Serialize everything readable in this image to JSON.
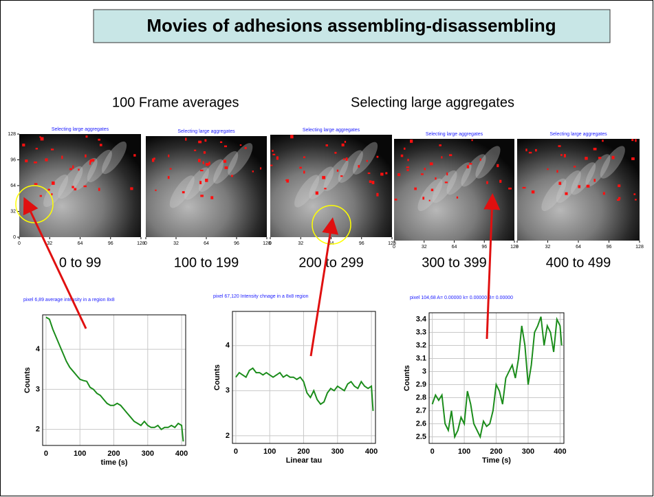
{
  "title": "Movies of adhesions assembling-disassembling",
  "subtitle_left": "100  Frame averages",
  "subtitle_right": "Selecting large aggregates",
  "images": {
    "xticks": [
      0,
      32,
      64,
      96,
      128
    ],
    "yticks": [
      0,
      32,
      64,
      96,
      128
    ],
    "panels": [
      {
        "caption": "Selecting large aggregates",
        "range": "0 to 99"
      },
      {
        "caption": "Selecting large aggregates",
        "range": "100 to 199"
      },
      {
        "caption": "Selecting large aggregates",
        "range": "200 to 299"
      },
      {
        "caption": "Selecting large aggregates",
        "range": "300 to 399"
      },
      {
        "caption": "Selecting large aggregates",
        "range": "400 to 499"
      }
    ]
  },
  "chart_data": [
    {
      "type": "line",
      "title": "pixel 6,89 average intensity in a region 8x8",
      "xlabel": "time (s)",
      "ylabel": "Counts",
      "xlim": [
        -10,
        412
      ],
      "ylim": [
        1.6,
        4.86
      ],
      "xticks": [
        0,
        100,
        200,
        300,
        400
      ],
      "yticks": [
        2,
        3,
        4
      ],
      "grid": true,
      "color": "#1a8c1a",
      "x": [
        0,
        10,
        20,
        30,
        40,
        50,
        60,
        70,
        80,
        90,
        100,
        110,
        120,
        130,
        140,
        150,
        160,
        170,
        180,
        190,
        200,
        210,
        220,
        230,
        240,
        250,
        260,
        270,
        280,
        290,
        300,
        310,
        320,
        330,
        340,
        350,
        360,
        370,
        380,
        390,
        400,
        405
      ],
      "values": [
        4.8,
        4.75,
        4.5,
        4.3,
        4.1,
        3.9,
        3.7,
        3.55,
        3.45,
        3.35,
        3.25,
        3.22,
        3.2,
        3.05,
        3.0,
        2.9,
        2.85,
        2.75,
        2.65,
        2.6,
        2.6,
        2.65,
        2.6,
        2.5,
        2.4,
        2.3,
        2.2,
        2.15,
        2.1,
        2.2,
        2.1,
        2.05,
        2.05,
        2.1,
        2.0,
        2.05,
        2.05,
        2.1,
        2.05,
        2.15,
        2.1,
        1.7
      ]
    },
    {
      "type": "line",
      "title": "pixel 67,120 Intensity chnage in a 8x8 region",
      "xlabel": "Linear tau",
      "ylabel": "Counts",
      "xlim": [
        -10,
        412
      ],
      "ylim": [
        1.83,
        4.76
      ],
      "xticks": [
        0,
        100,
        200,
        300,
        400
      ],
      "yticks": [
        2,
        3,
        4
      ],
      "grid": true,
      "color": "#1a8c1a",
      "x": [
        0,
        10,
        20,
        30,
        40,
        50,
        60,
        70,
        80,
        90,
        100,
        110,
        120,
        130,
        140,
        150,
        160,
        170,
        180,
        190,
        200,
        210,
        220,
        230,
        240,
        250,
        260,
        270,
        280,
        290,
        300,
        310,
        320,
        330,
        340,
        350,
        360,
        370,
        380,
        390,
        400,
        405
      ],
      "values": [
        3.3,
        3.4,
        3.35,
        3.3,
        3.45,
        3.5,
        3.4,
        3.4,
        3.35,
        3.4,
        3.35,
        3.3,
        3.35,
        3.4,
        3.3,
        3.35,
        3.3,
        3.3,
        3.25,
        3.3,
        3.2,
        2.95,
        2.85,
        3.0,
        2.8,
        2.7,
        2.75,
        2.95,
        3.05,
        3.0,
        3.1,
        3.05,
        3.0,
        3.15,
        3.2,
        3.1,
        3.05,
        3.2,
        3.1,
        3.05,
        3.1,
        2.55
      ]
    },
    {
      "type": "line",
      "title": "pixel 104,68 A= 0.00000 k= 0.00000 B= 0.00000",
      "xlabel": "Time (s)",
      "ylabel": "Counts",
      "xlim": [
        -10,
        412
      ],
      "ylim": [
        2.45,
        3.45
      ],
      "xticks": [
        0,
        100,
        200,
        300,
        400
      ],
      "yticks": [
        2.5,
        2.6,
        2.7,
        2.8,
        2.9,
        3,
        3.1,
        3.2,
        3.3,
        3.4
      ],
      "grid": true,
      "color": "#1a8c1a",
      "x": [
        0,
        10,
        20,
        30,
        40,
        50,
        60,
        70,
        80,
        90,
        100,
        110,
        120,
        130,
        140,
        150,
        160,
        170,
        180,
        190,
        200,
        210,
        220,
        230,
        240,
        250,
        260,
        270,
        280,
        290,
        300,
        310,
        320,
        330,
        340,
        350,
        360,
        370,
        380,
        390,
        400,
        405
      ],
      "values": [
        2.75,
        2.82,
        2.78,
        2.82,
        2.6,
        2.55,
        2.7,
        2.5,
        2.55,
        2.65,
        2.6,
        2.85,
        2.75,
        2.6,
        2.55,
        2.5,
        2.62,
        2.58,
        2.6,
        2.7,
        2.9,
        2.85,
        2.75,
        2.95,
        3.0,
        3.05,
        2.95,
        3.1,
        3.35,
        3.2,
        2.9,
        3.05,
        3.3,
        3.35,
        3.42,
        3.2,
        3.35,
        3.3,
        3.15,
        3.4,
        3.35,
        3.2
      ]
    }
  ]
}
